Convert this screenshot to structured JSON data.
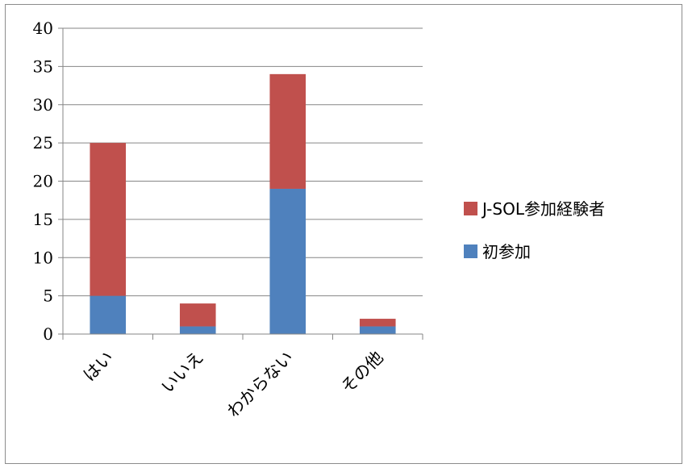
{
  "chart_data": {
    "type": "bar",
    "stacked": true,
    "categories": [
      "はい",
      "いいえ",
      "わからない",
      "その他"
    ],
    "series": [
      {
        "name": "初参加",
        "values": [
          5,
          1,
          19,
          1
        ],
        "color": "#4f81bd"
      },
      {
        "name": "J-SOL参加経験者",
        "values": [
          20,
          3,
          15,
          1
        ],
        "color": "#c0504d"
      }
    ],
    "ylim": [
      0,
      40
    ],
    "yticks": [
      0,
      5,
      10,
      15,
      20,
      25,
      30,
      35,
      40
    ],
    "grid": true,
    "legend_position": "right",
    "legend_order": [
      "J-SOL参加経験者",
      "初参加"
    ]
  }
}
